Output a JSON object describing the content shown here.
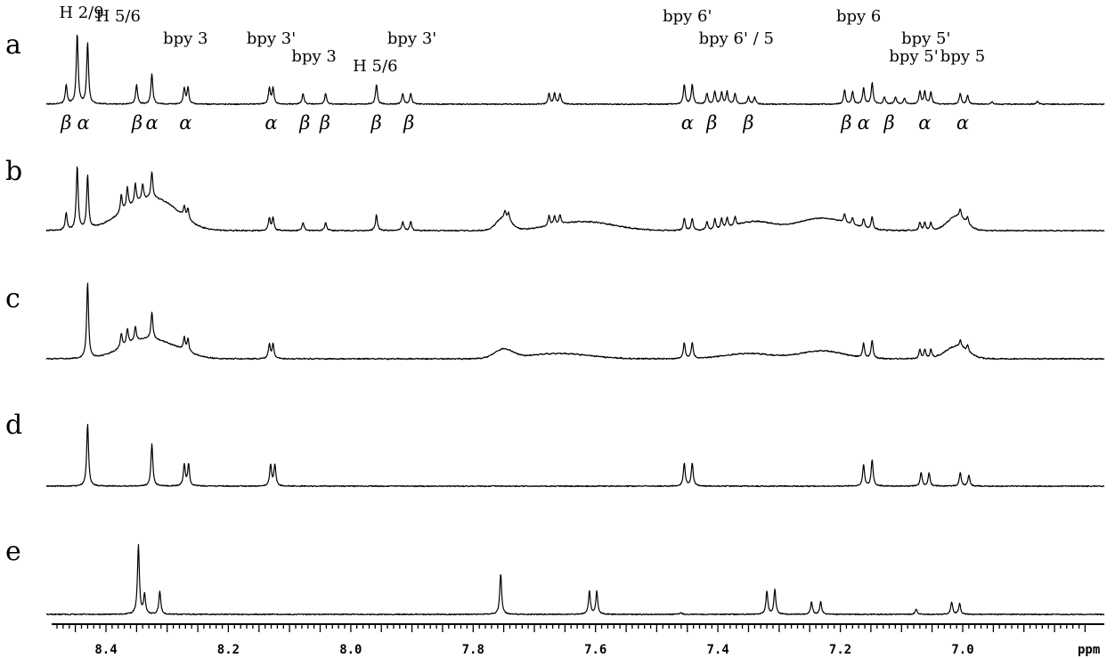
{
  "chart_data": {
    "type": "line",
    "title": "",
    "xlabel": "ppm",
    "ylabel": "",
    "xlim": [
      8.5,
      6.85
    ],
    "x_reversed": true,
    "grid": false,
    "x_ticks": [
      "8.4",
      "8.2",
      "8.0",
      "7.8",
      "7.6",
      "7.4",
      "7.2",
      "7.0"
    ],
    "x_tick_values": [
      8.4,
      8.2,
      8.0,
      7.8,
      7.6,
      7.4,
      7.2,
      7.0
    ],
    "spectra": [
      {
        "label": "a",
        "peaks": [
          {
            "ppm": 8.465,
            "h": 22
          },
          {
            "ppm": 8.447,
            "h": 78
          },
          {
            "ppm": 8.43,
            "h": 68
          },
          {
            "ppm": 8.35,
            "h": 22
          },
          {
            "ppm": 8.325,
            "h": 34
          },
          {
            "ppm": 8.272,
            "h": 18
          },
          {
            "ppm": 8.266,
            "h": 18
          },
          {
            "ppm": 8.133,
            "h": 18
          },
          {
            "ppm": 8.127,
            "h": 18
          },
          {
            "ppm": 8.078,
            "h": 12
          },
          {
            "ppm": 8.041,
            "h": 12
          },
          {
            "ppm": 7.958,
            "h": 22
          },
          {
            "ppm": 7.915,
            "h": 12
          },
          {
            "ppm": 7.902,
            "h": 12
          },
          {
            "ppm": 7.676,
            "h": 12
          },
          {
            "ppm": 7.667,
            "h": 12
          },
          {
            "ppm": 7.658,
            "h": 12
          },
          {
            "ppm": 7.455,
            "h": 22
          },
          {
            "ppm": 7.442,
            "h": 22
          },
          {
            "ppm": 7.418,
            "h": 12
          },
          {
            "ppm": 7.405,
            "h": 14
          },
          {
            "ppm": 7.394,
            "h": 13
          },
          {
            "ppm": 7.385,
            "h": 14
          },
          {
            "ppm": 7.372,
            "h": 12
          },
          {
            "ppm": 7.35,
            "h": 8
          },
          {
            "ppm": 7.34,
            "h": 8
          },
          {
            "ppm": 7.193,
            "h": 16
          },
          {
            "ppm": 7.18,
            "h": 14
          },
          {
            "ppm": 7.162,
            "h": 18
          },
          {
            "ppm": 7.148,
            "h": 24
          },
          {
            "ppm": 7.128,
            "h": 8
          },
          {
            "ppm": 7.11,
            "h": 8
          },
          {
            "ppm": 7.095,
            "h": 7
          },
          {
            "ppm": 7.07,
            "h": 14
          },
          {
            "ppm": 7.062,
            "h": 14
          },
          {
            "ppm": 7.052,
            "h": 14
          },
          {
            "ppm": 7.004,
            "h": 12
          },
          {
            "ppm": 6.992,
            "h": 10
          },
          {
            "ppm": 6.952,
            "h": 3
          },
          {
            "ppm": 6.878,
            "h": 3
          }
        ],
        "humps": []
      },
      {
        "label": "b",
        "peaks": [
          {
            "ppm": 8.465,
            "h": 20
          },
          {
            "ppm": 8.447,
            "h": 72
          },
          {
            "ppm": 8.43,
            "h": 60
          },
          {
            "ppm": 8.375,
            "h": 20
          },
          {
            "ppm": 8.365,
            "h": 24
          },
          {
            "ppm": 8.352,
            "h": 22
          },
          {
            "ppm": 8.34,
            "h": 18
          },
          {
            "ppm": 8.325,
            "h": 30
          },
          {
            "ppm": 8.272,
            "h": 12
          },
          {
            "ppm": 8.266,
            "h": 12
          },
          {
            "ppm": 8.133,
            "h": 14
          },
          {
            "ppm": 8.127,
            "h": 14
          },
          {
            "ppm": 8.078,
            "h": 9
          },
          {
            "ppm": 8.041,
            "h": 9
          },
          {
            "ppm": 7.958,
            "h": 18
          },
          {
            "ppm": 7.915,
            "h": 10
          },
          {
            "ppm": 7.902,
            "h": 10
          },
          {
            "ppm": 7.748,
            "h": 8
          },
          {
            "ppm": 7.742,
            "h": 8
          },
          {
            "ppm": 7.676,
            "h": 11
          },
          {
            "ppm": 7.667,
            "h": 10
          },
          {
            "ppm": 7.658,
            "h": 10
          },
          {
            "ppm": 7.455,
            "h": 14
          },
          {
            "ppm": 7.442,
            "h": 14
          },
          {
            "ppm": 7.418,
            "h": 10
          },
          {
            "ppm": 7.405,
            "h": 12
          },
          {
            "ppm": 7.394,
            "h": 11
          },
          {
            "ppm": 7.385,
            "h": 11
          },
          {
            "ppm": 7.372,
            "h": 10
          },
          {
            "ppm": 7.193,
            "h": 10
          },
          {
            "ppm": 7.18,
            "h": 8
          },
          {
            "ppm": 7.162,
            "h": 10
          },
          {
            "ppm": 7.148,
            "h": 14
          },
          {
            "ppm": 7.07,
            "h": 9
          },
          {
            "ppm": 7.062,
            "h": 9
          },
          {
            "ppm": 7.052,
            "h": 9
          },
          {
            "ppm": 7.004,
            "h": 10
          },
          {
            "ppm": 6.992,
            "h": 8
          }
        ],
        "humps": [
          {
            "ppm": 8.34,
            "h": 28,
            "w": 0.04
          },
          {
            "ppm": 8.3,
            "h": 14,
            "w": 0.03
          },
          {
            "ppm": 7.75,
            "h": 14,
            "w": 0.012
          },
          {
            "ppm": 7.62,
            "h": 10,
            "w": 0.05
          },
          {
            "ppm": 7.34,
            "h": 10,
            "w": 0.03
          },
          {
            "ppm": 7.23,
            "h": 14,
            "w": 0.04
          },
          {
            "ppm": 7.01,
            "h": 16,
            "w": 0.015
          }
        ]
      },
      {
        "label": "c",
        "peaks": [
          {
            "ppm": 8.43,
            "h": 85
          },
          {
            "ppm": 8.375,
            "h": 16
          },
          {
            "ppm": 8.365,
            "h": 18
          },
          {
            "ppm": 8.352,
            "h": 16
          },
          {
            "ppm": 8.325,
            "h": 30
          },
          {
            "ppm": 8.272,
            "h": 14
          },
          {
            "ppm": 8.266,
            "h": 14
          },
          {
            "ppm": 8.133,
            "h": 16
          },
          {
            "ppm": 8.127,
            "h": 16
          },
          {
            "ppm": 7.455,
            "h": 18
          },
          {
            "ppm": 7.442,
            "h": 18
          },
          {
            "ppm": 7.162,
            "h": 16
          },
          {
            "ppm": 7.148,
            "h": 20
          },
          {
            "ppm": 7.07,
            "h": 10
          },
          {
            "ppm": 7.062,
            "h": 10
          },
          {
            "ppm": 7.052,
            "h": 10
          },
          {
            "ppm": 7.004,
            "h": 8
          },
          {
            "ppm": 6.992,
            "h": 7
          }
        ],
        "humps": [
          {
            "ppm": 8.34,
            "h": 20,
            "w": 0.035
          },
          {
            "ppm": 8.29,
            "h": 8,
            "w": 0.03
          },
          {
            "ppm": 7.75,
            "h": 10,
            "w": 0.015
          },
          {
            "ppm": 7.66,
            "h": 6,
            "w": 0.05
          },
          {
            "ppm": 7.35,
            "h": 6,
            "w": 0.04
          },
          {
            "ppm": 7.23,
            "h": 9,
            "w": 0.035
          },
          {
            "ppm": 7.01,
            "h": 14,
            "w": 0.018
          }
        ]
      },
      {
        "label": "d",
        "peaks": [
          {
            "ppm": 8.43,
            "h": 70
          },
          {
            "ppm": 8.325,
            "h": 48
          },
          {
            "ppm": 8.272,
            "h": 24
          },
          {
            "ppm": 8.265,
            "h": 24
          },
          {
            "ppm": 8.131,
            "h": 24
          },
          {
            "ppm": 8.124,
            "h": 24
          },
          {
            "ppm": 7.455,
            "h": 26
          },
          {
            "ppm": 7.442,
            "h": 26
          },
          {
            "ppm": 7.162,
            "h": 24
          },
          {
            "ppm": 7.148,
            "h": 30
          },
          {
            "ppm": 7.068,
            "h": 15
          },
          {
            "ppm": 7.055,
            "h": 15
          },
          {
            "ppm": 7.004,
            "h": 15
          },
          {
            "ppm": 6.99,
            "h": 12
          }
        ],
        "humps": []
      },
      {
        "label": "e",
        "peaks": [
          {
            "ppm": 8.347,
            "h": 78
          },
          {
            "ppm": 8.337,
            "h": 22
          },
          {
            "ppm": 8.312,
            "h": 26
          },
          {
            "ppm": 7.755,
            "h": 46
          },
          {
            "ppm": 7.61,
            "h": 26
          },
          {
            "ppm": 7.598,
            "h": 26
          },
          {
            "ppm": 7.46,
            "h": 2
          },
          {
            "ppm": 7.32,
            "h": 26
          },
          {
            "ppm": 7.307,
            "h": 28
          },
          {
            "ppm": 7.247,
            "h": 14
          },
          {
            "ppm": 7.232,
            "h": 14
          },
          {
            "ppm": 7.076,
            "h": 6
          },
          {
            "ppm": 7.018,
            "h": 14
          },
          {
            "ppm": 7.005,
            "h": 12
          }
        ],
        "humps": []
      }
    ],
    "annotations": {
      "assignments": [
        {
          "text": "H 2/9",
          "ppm": 8.44,
          "row": 0
        },
        {
          "text": "H 5/6",
          "ppm": 8.38,
          "row": 1
        },
        {
          "text": "bpy 3",
          "ppm": 8.27,
          "row": 2
        },
        {
          "text": "bpy 3'",
          "ppm": 8.13,
          "row": 2
        },
        {
          "text": "bpy 3",
          "ppm": 8.06,
          "row": 4
        },
        {
          "text": "H 5/6",
          "ppm": 7.96,
          "row": 5
        },
        {
          "text": "bpy 3'",
          "ppm": 7.9,
          "row": 2
        },
        {
          "text": "bpy 6'",
          "ppm": 7.45,
          "row": 1
        },
        {
          "text": "bpy 6' / 5",
          "ppm": 7.37,
          "row": 3
        },
        {
          "text": "bpy 6",
          "ppm": 7.17,
          "row": 1
        },
        {
          "text": "bpy 5'",
          "ppm": 7.06,
          "row": 2
        },
        {
          "text": "bpy 5'",
          "ppm": 7.08,
          "row": 4
        },
        {
          "text": "bpy 5",
          "ppm": 7.0,
          "row": 4
        }
      ],
      "isomers": [
        {
          "text": "β",
          "ppm": 8.465
        },
        {
          "text": "α",
          "ppm": 8.437
        },
        {
          "text": "β",
          "ppm": 8.349
        },
        {
          "text": "α",
          "ppm": 8.325
        },
        {
          "text": "α",
          "ppm": 8.27
        },
        {
          "text": "α",
          "ppm": 8.13
        },
        {
          "text": "β",
          "ppm": 8.075
        },
        {
          "text": "β",
          "ppm": 8.042
        },
        {
          "text": "β",
          "ppm": 7.958
        },
        {
          "text": "β",
          "ppm": 7.905
        },
        {
          "text": "α",
          "ppm": 7.45
        },
        {
          "text": "β",
          "ppm": 7.41
        },
        {
          "text": "β",
          "ppm": 7.35
        },
        {
          "text": "β",
          "ppm": 7.19
        },
        {
          "text": "α",
          "ppm": 7.162
        },
        {
          "text": "β",
          "ppm": 7.12
        },
        {
          "text": "α",
          "ppm": 7.062
        },
        {
          "text": "α",
          "ppm": 7.0
        }
      ]
    }
  }
}
